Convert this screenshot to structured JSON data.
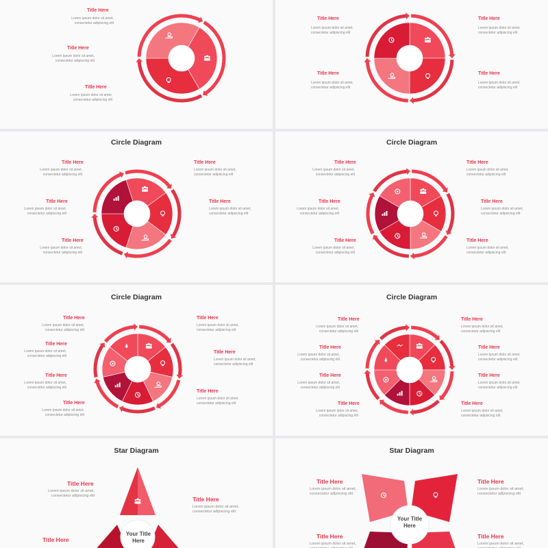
{
  "slides": [
    {
      "heading": "",
      "item_title": "Title Here",
      "item_body": "Lorem ipsum dolor sit amet, consectetur adipiscing elit"
    },
    {
      "heading": "",
      "item_title": "Title Here",
      "item_body": "Lorem ipsum dolor sit amet, consectetur adipiscing elit"
    },
    {
      "heading": "Circle Diagram",
      "item_title": "Title Here",
      "item_body": "Lorem ipsum dolor sit amet, consectetur adipiscing elit"
    },
    {
      "heading": "Circle Diagram",
      "item_title": "Title Here",
      "item_body": "Lorem ipsum dolor sit amet, consectetur adipiscing elit"
    },
    {
      "heading": "Circle Diagram",
      "item_title": "Title Here",
      "item_body": "Lorem ipsum dolor sit amet, consectetur adipiscing elit"
    },
    {
      "heading": "Circle Diagram",
      "item_title": "Title Here",
      "item_body": "Lorem ipsum dolor sit amet, consectetur adipiscing elit"
    },
    {
      "heading": "Star Diagram",
      "item_title": "Title Here",
      "item_body": "Lorem ipsum dolor sit amet, consectetur adipiscing elit",
      "center_title": "Your Title Here"
    },
    {
      "heading": "Star Diagram",
      "item_title": "Title Here",
      "item_body": "Lorem ipsum dolor sit amet, consectetur adipiscing elit",
      "center_title": "Your Title Here"
    }
  ],
  "colors": {
    "accent": "#e8344a",
    "segment_shades": [
      "#f04a5a",
      "#e62e3f",
      "#f4767f",
      "#d81c35",
      "#b0123a",
      "#f36070"
    ],
    "ring": "#ef3f4f",
    "background": "#fafafa"
  },
  "icon_names": [
    "people-icon",
    "lightbulb-icon",
    "money-hand-icon",
    "clock-icon",
    "chart-icon",
    "target-icon",
    "rocket-icon",
    "handshake-icon",
    "user-icon"
  ]
}
